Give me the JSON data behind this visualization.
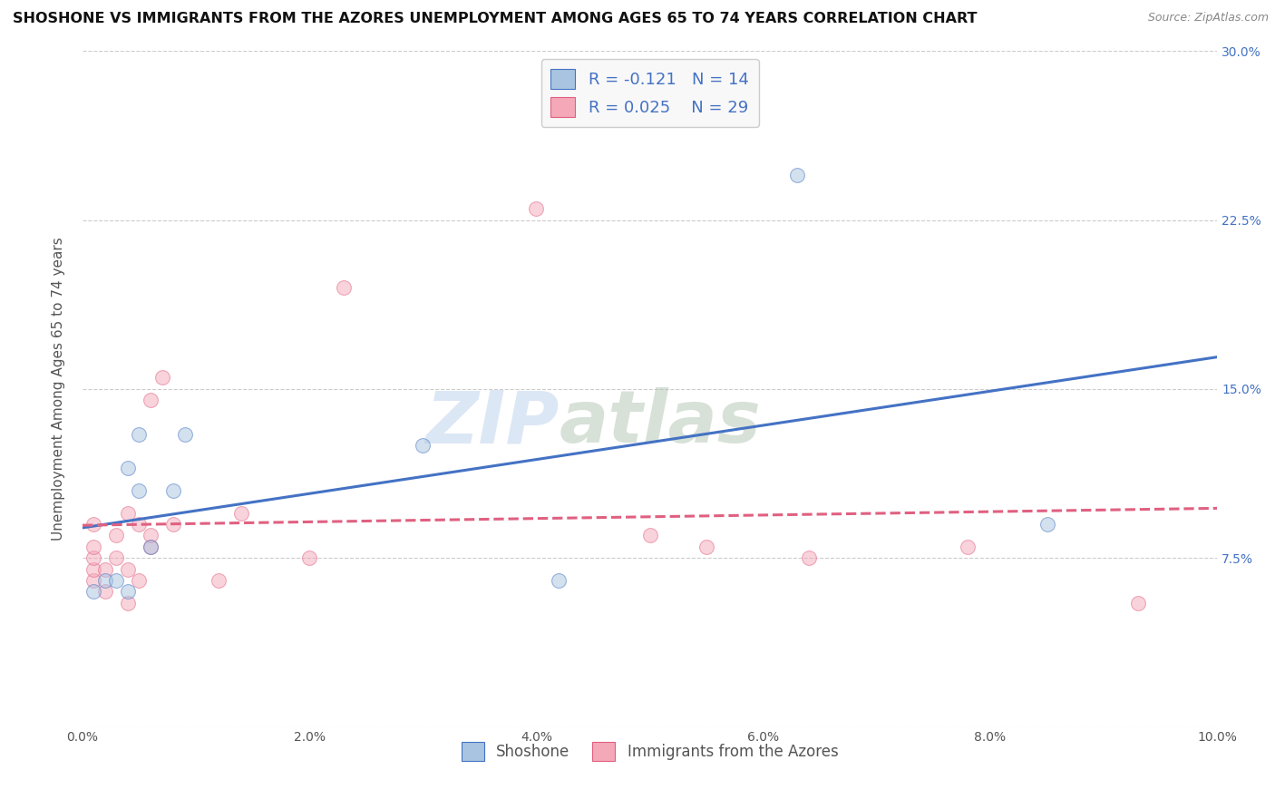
{
  "title": "SHOSHONE VS IMMIGRANTS FROM THE AZORES UNEMPLOYMENT AMONG AGES 65 TO 74 YEARS CORRELATION CHART",
  "source": "Source: ZipAtlas.com",
  "ylabel": "Unemployment Among Ages 65 to 74 years",
  "xlim": [
    0.0,
    0.1
  ],
  "ylim": [
    0.0,
    0.3
  ],
  "xticks": [
    0.0,
    0.02,
    0.04,
    0.06,
    0.08,
    0.1
  ],
  "yticks": [
    0.0,
    0.075,
    0.15,
    0.225,
    0.3
  ],
  "xtick_labels": [
    "0.0%",
    "2.0%",
    "4.0%",
    "6.0%",
    "8.0%",
    "10.0%"
  ],
  "right_yticks": [
    0.075,
    0.15,
    0.225,
    0.3
  ],
  "right_ytick_labels": [
    "7.5%",
    "15.0%",
    "22.5%",
    "30.0%"
  ],
  "shoshone_color": "#a8c4e0",
  "azores_color": "#f4a8b8",
  "shoshone_line_color": "#4472c4",
  "azores_line_color": "#e06080",
  "R_shoshone": -0.121,
  "N_shoshone": 14,
  "R_azores": 0.025,
  "N_azores": 29,
  "legend_label_shoshone": "Shoshone",
  "legend_label_azores": "Immigrants from the Azores",
  "watermark_zip": "ZIP",
  "watermark_atlas": "atlas",
  "shoshone_x": [
    0.001,
    0.002,
    0.003,
    0.004,
    0.004,
    0.005,
    0.005,
    0.006,
    0.008,
    0.009,
    0.03,
    0.042,
    0.063,
    0.085
  ],
  "shoshone_y": [
    0.06,
    0.065,
    0.065,
    0.06,
    0.115,
    0.13,
    0.105,
    0.08,
    0.105,
    0.13,
    0.125,
    0.065,
    0.245,
    0.09
  ],
  "azores_x": [
    0.001,
    0.001,
    0.001,
    0.001,
    0.001,
    0.002,
    0.002,
    0.003,
    0.003,
    0.004,
    0.004,
    0.004,
    0.005,
    0.005,
    0.006,
    0.006,
    0.006,
    0.007,
    0.008,
    0.012,
    0.014,
    0.02,
    0.023,
    0.04,
    0.05,
    0.055,
    0.064,
    0.078,
    0.093
  ],
  "azores_y": [
    0.065,
    0.07,
    0.075,
    0.08,
    0.09,
    0.06,
    0.07,
    0.075,
    0.085,
    0.055,
    0.07,
    0.095,
    0.065,
    0.09,
    0.08,
    0.085,
    0.145,
    0.155,
    0.09,
    0.065,
    0.095,
    0.075,
    0.195,
    0.23,
    0.085,
    0.08,
    0.075,
    0.08,
    0.055
  ],
  "background_color": "#ffffff",
  "grid_color": "#cccccc",
  "title_fontsize": 11.5,
  "axis_label_fontsize": 11,
  "tick_fontsize": 10,
  "marker_size": 130,
  "marker_alpha": 0.5
}
